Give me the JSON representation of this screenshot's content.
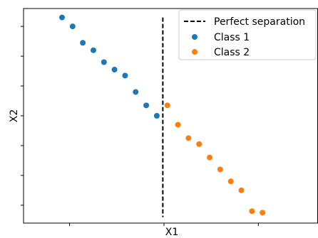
{
  "chart_data": {
    "type": "scatter",
    "xlabel": "X1",
    "ylabel": "X2",
    "xlim": [
      -3.72,
      4.08
    ],
    "ylim": [
      -3.6,
      3.6
    ],
    "tick_labels_shown": false,
    "grid": false,
    "legend_position": "top-right",
    "series": [
      {
        "name": "Class 1",
        "color": "#1f77b4",
        "points": [
          [
            -2.7,
            3.3
          ],
          [
            -2.42,
            3.0
          ],
          [
            -2.15,
            2.45
          ],
          [
            -1.87,
            2.2
          ],
          [
            -1.59,
            1.8
          ],
          [
            -1.31,
            1.55
          ],
          [
            -1.03,
            1.35
          ],
          [
            -0.75,
            0.8
          ],
          [
            -0.47,
            0.35
          ],
          [
            -0.19,
            0.0
          ]
        ]
      },
      {
        "name": "Class 2",
        "color": "#ff7f0e",
        "points": [
          [
            0.09,
            0.35
          ],
          [
            0.37,
            -0.3
          ],
          [
            0.65,
            -0.75
          ],
          [
            0.93,
            -0.95
          ],
          [
            1.21,
            -1.4
          ],
          [
            1.49,
            -1.8
          ],
          [
            1.77,
            -2.2
          ],
          [
            2.05,
            -2.5
          ],
          [
            2.33,
            -3.2
          ],
          [
            2.61,
            -3.25
          ]
        ]
      }
    ],
    "reference_line": {
      "name": "Perfect separation",
      "x": -0.03,
      "y_range": [
        -3.4,
        3.3
      ],
      "style": "dashed",
      "color": "#000000"
    }
  }
}
